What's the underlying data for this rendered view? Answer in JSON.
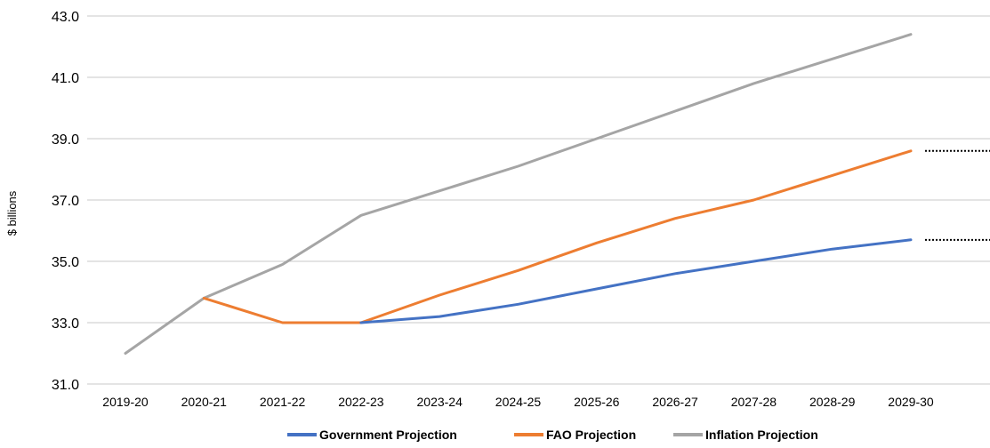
{
  "chart_data": {
    "type": "line",
    "title": "",
    "xlabel": "",
    "ylabel": "$ billions",
    "categories": [
      "2019-20",
      "2020-21",
      "2021-22",
      "2022-23",
      "2023-24",
      "2024-25",
      "2025-26",
      "2026-27",
      "2027-28",
      "2028-29",
      "2029-30"
    ],
    "y_ticks": [
      "31.0",
      "33.0",
      "35.0",
      "37.0",
      "39.0",
      "41.0",
      "43.0"
    ],
    "ylim": [
      31.0,
      43.0
    ],
    "grid": "horizontal",
    "legend_position": "bottom",
    "series": [
      {
        "name": "Government Projection",
        "color": "#4472C4",
        "values": [
          null,
          null,
          null,
          33.0,
          33.2,
          33.6,
          34.1,
          34.6,
          35.0,
          35.4,
          35.7
        ]
      },
      {
        "name": "FAO Projection",
        "color": "#ED7D31",
        "values": [
          null,
          33.8,
          33.0,
          33.0,
          33.9,
          34.7,
          35.6,
          36.4,
          37.0,
          37.8,
          38.6
        ]
      },
      {
        "name": "Inflation Projection",
        "color": "#A5A5A5",
        "values": [
          32.0,
          33.8,
          34.9,
          36.5,
          37.3,
          38.1,
          39.0,
          39.9,
          40.8,
          41.6,
          42.4
        ]
      }
    ]
  }
}
